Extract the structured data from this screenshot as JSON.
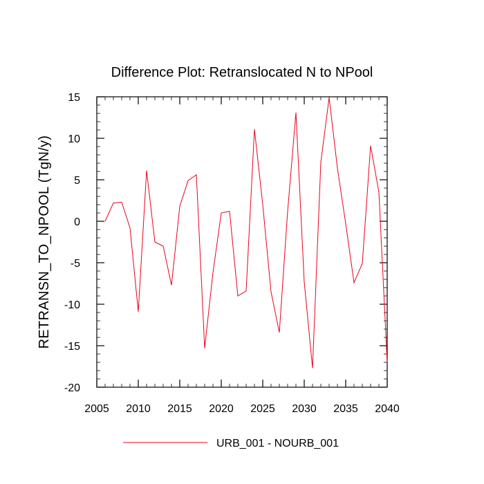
{
  "chart_data": {
    "type": "line",
    "title": "Difference Plot: Retranslocated N to NPool",
    "xlabel": "",
    "ylabel": "RETRANSN_TO_NPOOL  (TgN/y)",
    "xlim": [
      2005,
      2040
    ],
    "ylim": [
      -20,
      15
    ],
    "x_ticks": [
      2005,
      2010,
      2015,
      2020,
      2025,
      2030,
      2035,
      2040
    ],
    "x_tick_labels": [
      "2005",
      "2010",
      "2015",
      "2020",
      "2025",
      "2030",
      "2035",
      "2040"
    ],
    "y_ticks": [
      -20,
      -15,
      -10,
      -5,
      0,
      5,
      10,
      15
    ],
    "y_tick_labels": [
      "-20",
      "-15",
      "-10",
      "-5",
      "0",
      "5",
      "10",
      "15"
    ],
    "grid": false,
    "legend_position": "bottom",
    "x": [
      2006,
      2007,
      2008,
      2009,
      2010,
      2011,
      2012,
      2013,
      2014,
      2015,
      2016,
      2017,
      2018,
      2019,
      2020,
      2021,
      2022,
      2023,
      2024,
      2025,
      2026,
      2027,
      2028,
      2029,
      2030,
      2031,
      2032,
      2033,
      2034,
      2035,
      2036,
      2037,
      2038,
      2039,
      2040
    ],
    "series": [
      {
        "name": "URB_001 - NOURB_001",
        "color": "#e8001c",
        "values": [
          0.0,
          2.2,
          2.3,
          -0.8,
          -10.9,
          6.1,
          -2.5,
          -3.0,
          -7.7,
          1.8,
          4.9,
          5.6,
          -15.3,
          -6.2,
          1.0,
          1.2,
          -9.0,
          -8.4,
          11.1,
          2.0,
          -8.5,
          -13.4,
          1.2,
          13.1,
          -7.3,
          -17.7,
          7.1,
          14.9,
          6.4,
          -0.3,
          -7.4,
          -5.1,
          9.1,
          3.5,
          -17.0
        ]
      }
    ]
  }
}
